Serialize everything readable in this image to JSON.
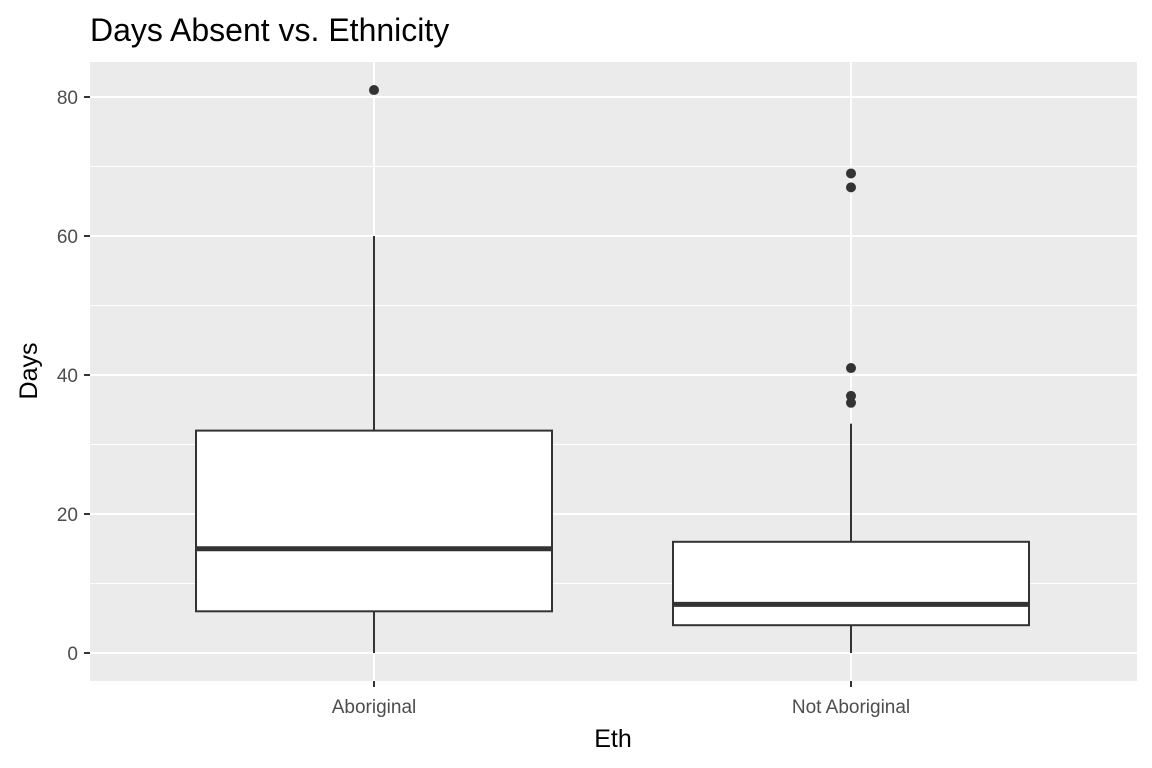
{
  "chart_data": {
    "type": "boxplot",
    "title": "Days Absent vs. Ethnicity",
    "xlabel": "Eth",
    "ylabel": "Days",
    "categories": [
      "Aboriginal",
      "Not Aboriginal"
    ],
    "boxes": [
      {
        "category": "Aboriginal",
        "whisker_low": 0,
        "q1": 6,
        "median": 15,
        "q3": 32,
        "whisker_high": 60,
        "outliers": [
          81
        ]
      },
      {
        "category": "Not Aboriginal",
        "whisker_low": 0,
        "q1": 4,
        "median": 7,
        "q3": 16,
        "whisker_high": 33,
        "outliers": [
          36,
          37,
          41,
          67,
          69
        ]
      }
    ],
    "ylim": [
      -4,
      85
    ],
    "yticks": [
      0,
      20,
      40,
      60,
      80
    ],
    "ytick_labels": [
      "0",
      "20",
      "40",
      "60",
      "80"
    ],
    "grid": true,
    "colors": {
      "panel": "#ebebeb",
      "grid": "#ffffff",
      "box_fill": "#ffffff",
      "box_line": "#333333",
      "outlier": "#333333"
    }
  }
}
